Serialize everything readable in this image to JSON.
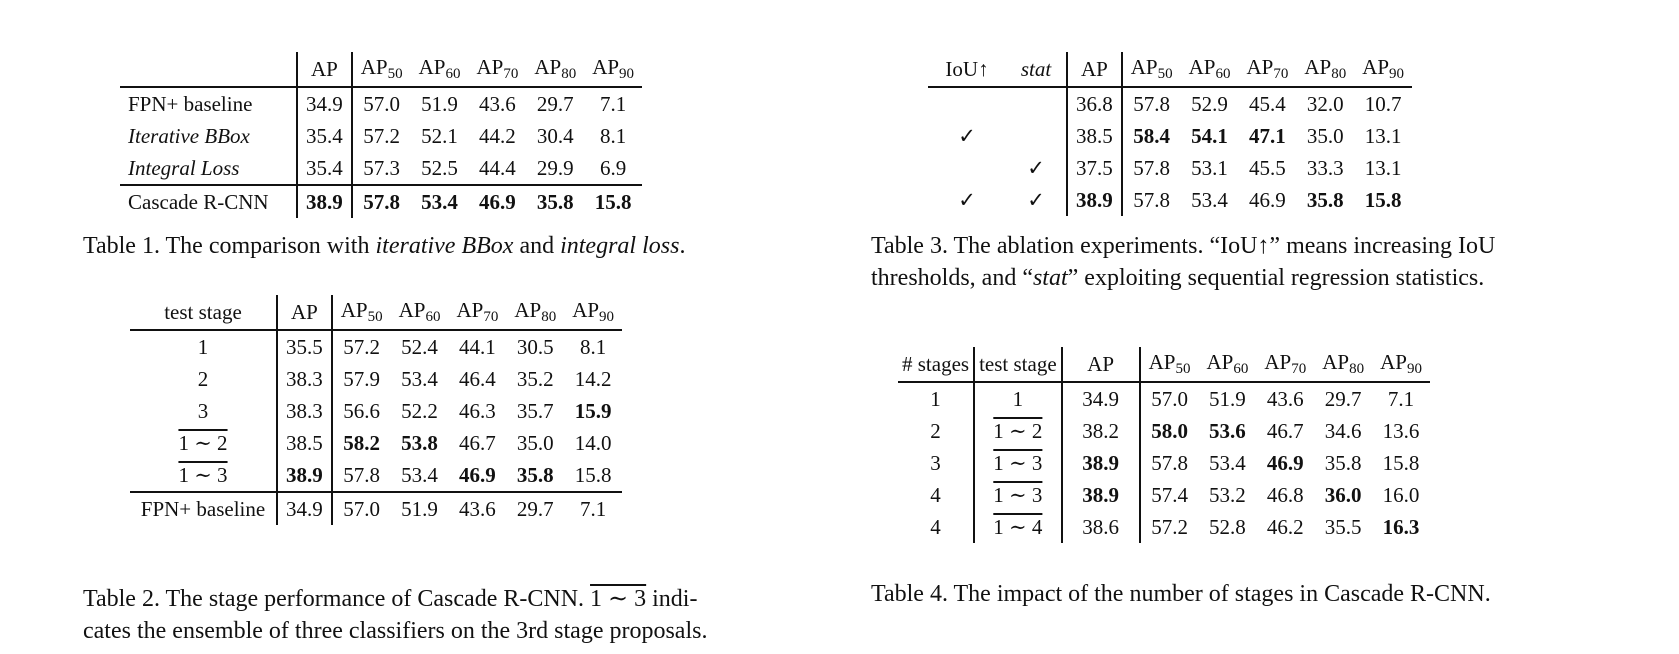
{
  "ap_label": "AP",
  "sub": {
    "s50": "50",
    "s60": "60",
    "s70": "70",
    "s80": "80",
    "s90": "90"
  },
  "check": "✓",
  "table1": {
    "rows": [
      {
        "name": "FPN+ baseline",
        "ap": "34.9",
        "ap50": "57.0",
        "ap60": "51.9",
        "ap70": "43.6",
        "ap80": "29.7",
        "ap90": "7.1"
      },
      {
        "name": "Iterative BBox",
        "ap": "35.4",
        "ap50": "57.2",
        "ap60": "52.1",
        "ap70": "44.2",
        "ap80": "30.4",
        "ap90": "8.1"
      },
      {
        "name": "Integral Loss",
        "ap": "35.4",
        "ap50": "57.3",
        "ap60": "52.5",
        "ap70": "44.4",
        "ap80": "29.9",
        "ap90": "6.9"
      },
      {
        "name": "Cascade R-CNN",
        "ap": "38.9",
        "ap50": "57.8",
        "ap60": "53.4",
        "ap70": "46.9",
        "ap80": "35.8",
        "ap90": "15.8"
      }
    ],
    "caption": {
      "t1": "Table 1. The comparison with ",
      "i1": "iterative BBox",
      "t2": " and ",
      "i2": "integral loss",
      "t3": "."
    }
  },
  "table2": {
    "header": "test stage",
    "rows": [
      {
        "stage": "1",
        "ap": "35.5",
        "ap50": "57.2",
        "ap60": "52.4",
        "ap70": "44.1",
        "ap80": "30.5",
        "ap90": "8.1"
      },
      {
        "stage": "2",
        "ap": "38.3",
        "ap50": "57.9",
        "ap60": "53.4",
        "ap70": "46.4",
        "ap80": "35.2",
        "ap90": "14.2"
      },
      {
        "stage": "3",
        "ap": "38.3",
        "ap50": "56.6",
        "ap60": "52.2",
        "ap70": "46.3",
        "ap80": "35.7",
        "ap90": "15.9"
      },
      {
        "stage": "1 ∼ 2",
        "ap": "38.5",
        "ap50": "58.2",
        "ap60": "53.8",
        "ap70": "46.7",
        "ap80": "35.0",
        "ap90": "14.0"
      },
      {
        "stage": "1 ∼ 3",
        "ap": "38.9",
        "ap50": "57.8",
        "ap60": "53.4",
        "ap70": "46.9",
        "ap80": "35.8",
        "ap90": "15.8"
      },
      {
        "stage": "FPN+ baseline",
        "ap": "34.9",
        "ap50": "57.0",
        "ap60": "51.9",
        "ap70": "43.6",
        "ap80": "29.7",
        "ap90": "7.1"
      }
    ],
    "caption": {
      "t1": "Table 2. The stage performance of Cascade R-CNN. ",
      "ov": "1 ∼ 3",
      "t2": " indi-",
      "line2": "cates the ensemble of three classifiers on the 3rd stage proposals."
    }
  },
  "table3": {
    "h_iou": "IoU↑",
    "h_stat": "stat",
    "rows": [
      {
        "iou": "",
        "stat": "",
        "ap": "36.8",
        "ap50": "57.8",
        "ap60": "52.9",
        "ap70": "45.4",
        "ap80": "32.0",
        "ap90": "10.7"
      },
      {
        "iou": "✓",
        "stat": "",
        "ap": "38.5",
        "ap50": "58.4",
        "ap60": "54.1",
        "ap70": "47.1",
        "ap80": "35.0",
        "ap90": "13.1"
      },
      {
        "iou": "",
        "stat": "✓",
        "ap": "37.5",
        "ap50": "57.8",
        "ap60": "53.1",
        "ap70": "45.5",
        "ap80": "33.3",
        "ap90": "13.1"
      },
      {
        "iou": "✓",
        "stat": "✓",
        "ap": "38.9",
        "ap50": "57.8",
        "ap60": "53.4",
        "ap70": "46.9",
        "ap80": "35.8",
        "ap90": "15.8"
      }
    ],
    "caption": {
      "t1": "Table 3. The ablation experiments. “IoU↑” means increasing IoU",
      "t2": "thresholds, and “",
      "i1": "stat",
      "t3": "” exploiting sequential regression statistics."
    }
  },
  "table4": {
    "h_stages": "# stages",
    "h_test": "test stage",
    "rows": [
      {
        "n": "1",
        "stage": "1",
        "ap": "34.9",
        "ap50": "57.0",
        "ap60": "51.9",
        "ap70": "43.6",
        "ap80": "29.7",
        "ap90": "7.1"
      },
      {
        "n": "2",
        "stage": "1 ∼ 2",
        "ap": "38.2",
        "ap50": "58.0",
        "ap60": "53.6",
        "ap70": "46.7",
        "ap80": "34.6",
        "ap90": "13.6"
      },
      {
        "n": "3",
        "stage": "1 ∼ 3",
        "ap": "38.9",
        "ap50": "57.8",
        "ap60": "53.4",
        "ap70": "46.9",
        "ap80": "35.8",
        "ap90": "15.8"
      },
      {
        "n": "4",
        "stage": "1 ∼ 3",
        "ap": "38.9",
        "ap50": "57.4",
        "ap60": "53.2",
        "ap70": "46.8",
        "ap80": "36.0",
        "ap90": "16.0"
      },
      {
        "n": "4",
        "stage": "1 ∼ 4",
        "ap": "38.6",
        "ap50": "57.2",
        "ap60": "52.8",
        "ap70": "46.2",
        "ap80": "35.5",
        "ap90": "16.3"
      }
    ],
    "caption": "Table 4. The impact of the number of stages in Cascade R-CNN."
  }
}
